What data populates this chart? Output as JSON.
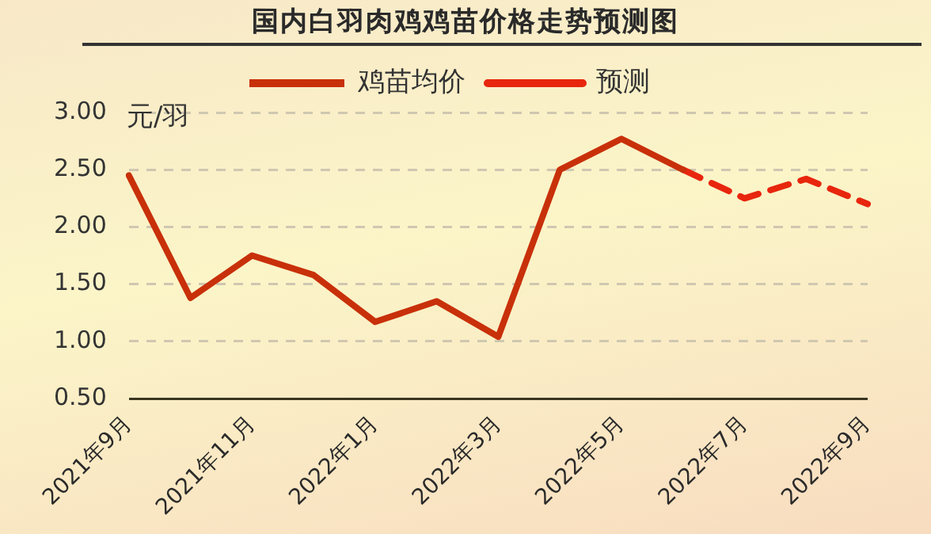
{
  "chart_data": {
    "type": "line",
    "title": "国内白羽肉鸡鸡苗价格走势预测图",
    "ylabel": "元/羽",
    "categories": [
      "2021年9月",
      null,
      "2021年11月",
      null,
      "2022年1月",
      null,
      "2022年3月",
      null,
      "2022年5月",
      null,
      "2022年7月",
      null,
      "2022年9月"
    ],
    "series": [
      {
        "name": "鸡苗均价",
        "color": "#c8300a",
        "line_style": "solid",
        "values": [
          2.45,
          1.38,
          1.75,
          1.58,
          1.17,
          1.35,
          1.04,
          2.5,
          2.77,
          2.5,
          null,
          null,
          null
        ]
      },
      {
        "name": "预测",
        "color": "#e8260e",
        "line_style": "dashed",
        "values": [
          null,
          null,
          null,
          null,
          null,
          null,
          null,
          null,
          null,
          2.5,
          2.25,
          2.42,
          2.2
        ]
      }
    ],
    "ylim": [
      0.5,
      3.0
    ],
    "yticks": [
      {
        "value": 0.5,
        "label": "0.50"
      },
      {
        "value": 1,
        "label": "1.00"
      },
      {
        "value": 1.5,
        "label": "1.50"
      },
      {
        "value": 2,
        "label": "2.00"
      },
      {
        "value": 2.5,
        "label": "2.50"
      },
      {
        "value": 3,
        "label": "3.00"
      }
    ],
    "grid": "y",
    "legend": "top",
    "marker": "none"
  }
}
